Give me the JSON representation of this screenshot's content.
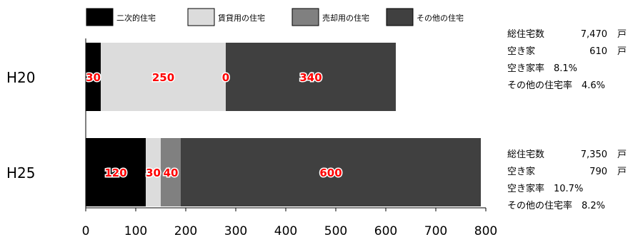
{
  "chart_data": {
    "type": "bar",
    "orientation": "horizontal",
    "stacked": true,
    "categories": [
      "H20",
      "H25"
    ],
    "series": [
      {
        "name": "二次的住宅",
        "values": [
          30,
          120
        ],
        "color": "#000000"
      },
      {
        "name": "賃貸用の住宅",
        "values": [
          250,
          30
        ],
        "color": "#dcdcdc"
      },
      {
        "name": "売却用の住宅",
        "values": [
          0,
          40
        ],
        "color": "#808080"
      },
      {
        "name": "その他の住宅",
        "values": [
          340,
          600
        ],
        "color": "#404040"
      }
    ],
    "data_labels": [
      [
        "30",
        "250",
        "0",
        "340"
      ],
      [
        "120",
        "30",
        "40",
        "600"
      ]
    ],
    "xlim": [
      0,
      800
    ],
    "xticks": [
      0,
      100,
      200,
      300,
      400,
      500,
      600,
      700,
      800
    ],
    "legend_position": "top",
    "grid": false,
    "label_color": "#ff0000"
  },
  "summaries": [
    {
      "total_label": "総住宅数",
      "total_value": "7,470",
      "total_unit": "戸",
      "vacant_label": "空き家",
      "vacant_value": "610",
      "vacant_unit": "戸",
      "rate_text": "空き家率　8.1%",
      "other_rate_text": "その他の住宅率　4.6%"
    },
    {
      "total_label": "総住宅数",
      "total_value": "7,350",
      "total_unit": "戸",
      "vacant_label": "空き家",
      "vacant_value": "790",
      "vacant_unit": "戸",
      "rate_text": "空き家率　10.7%",
      "other_rate_text": "その他の住宅率　8.2%"
    }
  ]
}
